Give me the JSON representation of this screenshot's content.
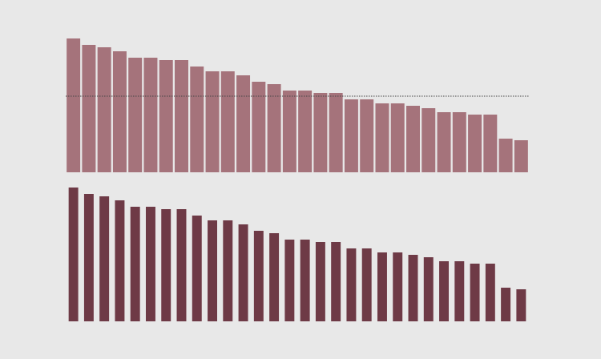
{
  "chart_data": [
    {
      "type": "bar",
      "color": "#a5737b",
      "bar_width": 0.88,
      "values": [
        167,
        159,
        156,
        151,
        143,
        143,
        140,
        140,
        132,
        126,
        126,
        121,
        113,
        110,
        102,
        102,
        99,
        99,
        91,
        91,
        86,
        86,
        83,
        80,
        75,
        75,
        72,
        72,
        42,
        40
      ],
      "ylim": [
        0,
        170
      ],
      "reference_line": 95
    },
    {
      "type": "bar",
      "color": "#6e3a46",
      "bar_width": 0.62,
      "values": [
        167,
        159,
        156,
        151,
        143,
        143,
        140,
        140,
        132,
        126,
        126,
        121,
        113,
        110,
        102,
        102,
        99,
        99,
        91,
        91,
        86,
        86,
        83,
        80,
        75,
        75,
        72,
        72,
        42,
        40
      ],
      "ylim": [
        0,
        170
      ]
    }
  ]
}
